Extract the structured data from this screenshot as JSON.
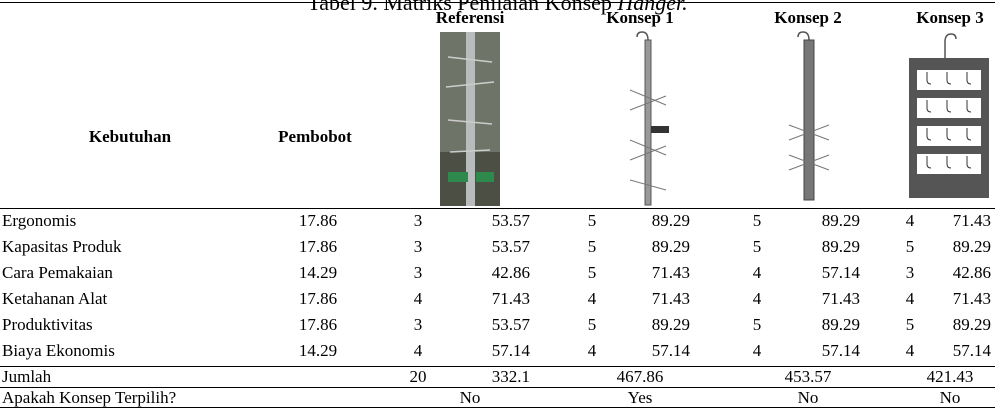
{
  "header": {
    "title": "Tabel 9. Matriks Penilaian Konsep",
    "title_emphasis": "Hanger.",
    "need": "Kebutuhan",
    "weight": "Pembobot",
    "concepts": [
      "Referensi",
      "Konsep 1",
      "Konsep 2",
      "Konsep 3"
    ]
  },
  "table": {
    "rows": [
      {
        "name": "Ergonomis",
        "weight": "17.86",
        "scores": [
          [
            "3",
            "53.57"
          ],
          [
            "5",
            "89.29"
          ],
          [
            "5",
            "89.29"
          ],
          [
            "4",
            "71.43"
          ]
        ]
      },
      {
        "name": "Kapasitas Produk",
        "weight": "17.86",
        "scores": [
          [
            "3",
            "53.57"
          ],
          [
            "5",
            "89.29"
          ],
          [
            "5",
            "89.29"
          ],
          [
            "5",
            "89.29"
          ]
        ]
      },
      {
        "name": "Cara Pemakaian",
        "weight": "14.29",
        "scores": [
          [
            "3",
            "42.86"
          ],
          [
            "5",
            "71.43"
          ],
          [
            "4",
            "57.14"
          ],
          [
            "3",
            "42.86"
          ]
        ]
      },
      {
        "name": "Ketahanan Alat",
        "weight": "17.86",
        "scores": [
          [
            "4",
            "71.43"
          ],
          [
            "4",
            "71.43"
          ],
          [
            "4",
            "71.43"
          ],
          [
            "4",
            "71.43"
          ]
        ]
      },
      {
        "name": "Produktivitas",
        "weight": "17.86",
        "scores": [
          [
            "3",
            "53.57"
          ],
          [
            "5",
            "89.29"
          ],
          [
            "5",
            "89.29"
          ],
          [
            "5",
            "89.29"
          ]
        ]
      },
      {
        "name": "Biaya Ekonomis",
        "weight": "14.29",
        "scores": [
          [
            "4",
            "57.14"
          ],
          [
            "4",
            "57.14"
          ],
          [
            "4",
            "57.14"
          ],
          [
            "4",
            "57.14"
          ]
        ]
      }
    ],
    "total": {
      "label": "Jumlah",
      "ref_score": "20",
      "values": [
        "332.1",
        "467.86",
        "453.57",
        "421.43"
      ]
    },
    "choice": {
      "label": "Apakah Konsep Terpilih?",
      "values": [
        "No",
        "Yes",
        "No",
        "No"
      ]
    }
  }
}
